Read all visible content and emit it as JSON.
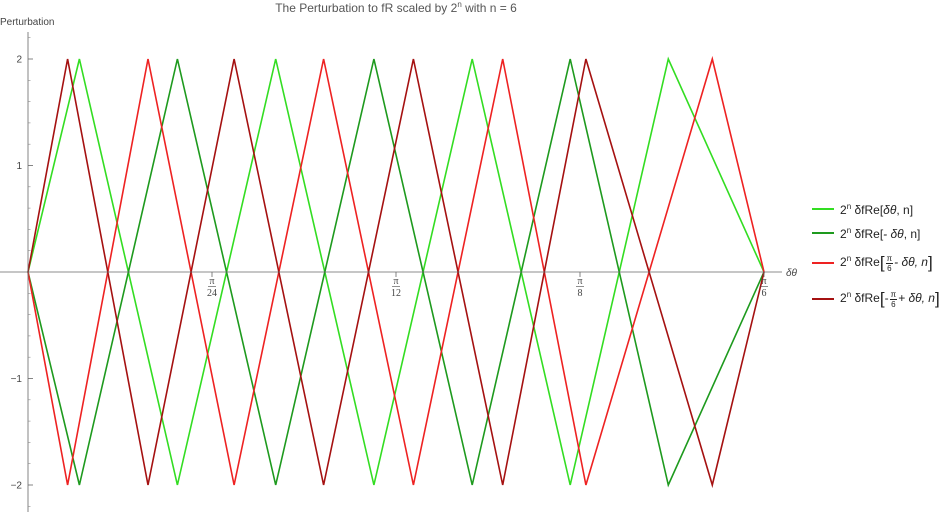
{
  "chart_data": {
    "type": "line",
    "title_prefix": "The Perturbation to fR scaled by 2",
    "title_sup": "n",
    "title_suffix": " with n = 6",
    "ylabel": "Perturbation",
    "xlabel": "δθ",
    "xlim": [
      0,
      0.5236
    ],
    "ylim": [
      -2.2,
      2.2
    ],
    "y_ticks": [
      -2,
      -1,
      1,
      2
    ],
    "x_ticks": [
      {
        "value": 0.1309,
        "num": "π",
        "den": "24"
      },
      {
        "value": 0.2618,
        "num": "π",
        "den": "12"
      },
      {
        "value": 0.3927,
        "num": "π",
        "den": "8"
      },
      {
        "value": 0.5236,
        "num": "π",
        "den": "6"
      }
    ],
    "grid": false,
    "legend_position": "right",
    "series": [
      {
        "name": "2^n δfRe[δθ, n]",
        "color": "#33dd22",
        "x": [
          0,
          0.0366,
          0.1063,
          0.1762,
          0.2461,
          0.316,
          0.3857,
          0.4555,
          0.5236
        ],
        "y": [
          0,
          2,
          -2,
          2,
          -2,
          2,
          -2,
          2,
          0
        ]
      },
      {
        "name": "2^n δfRe[-δθ, n]",
        "color": "#1e9a1e",
        "x": [
          0,
          0.0366,
          0.1063,
          0.1762,
          0.2461,
          0.316,
          0.3857,
          0.4555,
          0.5236
        ],
        "y": [
          0,
          -2,
          2,
          -2,
          2,
          -2,
          2,
          -2,
          0
        ]
      },
      {
        "name": "2^n δfRe[π/6 - δθ, n]",
        "color": "#ee2222",
        "x": [
          0,
          0.0282,
          0.0854,
          0.1466,
          0.2103,
          0.2742,
          0.3377,
          0.3969,
          0.4868,
          0.5236
        ],
        "y": [
          0,
          -2,
          2,
          -2,
          2,
          -2,
          2,
          -2,
          2,
          0
        ]
      },
      {
        "name": "2^n δfRe[-π/6 + δθ, n]",
        "color": "#a51111",
        "x": [
          0,
          0.0282,
          0.0854,
          0.1466,
          0.2103,
          0.2742,
          0.3377,
          0.3969,
          0.4868,
          0.5236
        ],
        "y": [
          0,
          2,
          -2,
          2,
          -2,
          2,
          -2,
          2,
          -2,
          0
        ]
      }
    ]
  },
  "legend": {
    "items": [
      {
        "base": "2",
        "sup": "n",
        "fn": "δfRe[",
        "arg": "δθ",
        "tail": ", n]"
      },
      {
        "base": "2",
        "sup": "n",
        "fn": "δfRe[",
        "arg": "- δθ",
        "tail": ", n]"
      },
      {
        "base": "2",
        "sup": "n",
        "fn": "δfRe",
        "pre": "",
        "num": "π",
        "den": "6",
        "post": "- δθ, n"
      },
      {
        "base": "2",
        "sup": "n",
        "fn": "δfRe",
        "pre": "-",
        "num": "π",
        "den": "6",
        "post": "+ δθ, n"
      }
    ]
  }
}
